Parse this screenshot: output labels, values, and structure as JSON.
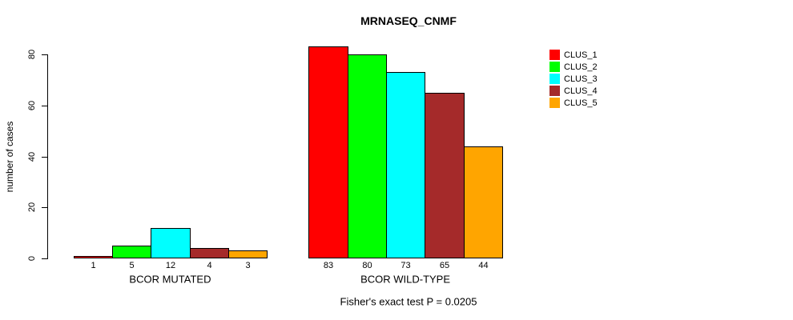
{
  "title": "MRNASEQ_CNMF",
  "y_axis_label": "number of cases",
  "footer_note": "Fisher's exact test P = 0.0205",
  "chart_data": {
    "type": "bar",
    "title": "MRNASEQ_CNMF",
    "ylabel": "number of cases",
    "xlabel": "",
    "categories": [
      "BCOR MUTATED",
      "BCOR WILD-TYPE"
    ],
    "series": [
      {
        "name": "CLUS_1",
        "color": "#FF0000",
        "values": [
          1,
          83
        ]
      },
      {
        "name": "CLUS_2",
        "color": "#00FF00",
        "values": [
          5,
          80
        ]
      },
      {
        "name": "CLUS_3",
        "color": "#00FFFF",
        "values": [
          12,
          73
        ]
      },
      {
        "name": "CLUS_4",
        "color": "#A52A2A",
        "values": [
          4,
          65
        ]
      },
      {
        "name": "CLUS_5",
        "color": "#FFA500",
        "values": [
          3,
          44
        ]
      }
    ],
    "bar_value_labels": [
      [
        "1",
        "5",
        "12",
        "4",
        "3"
      ],
      [
        "83",
        "80",
        "73",
        "65",
        "44"
      ]
    ],
    "yticks": [
      0,
      20,
      40,
      60,
      80
    ],
    "ylim": [
      0,
      84
    ],
    "grid": false,
    "legend_position": "right",
    "annotation": "Fisher's exact test P = 0.0205",
    "bar_border_color": "#000000",
    "background_color": "#FFFFFF",
    "text_color": "#000000"
  }
}
